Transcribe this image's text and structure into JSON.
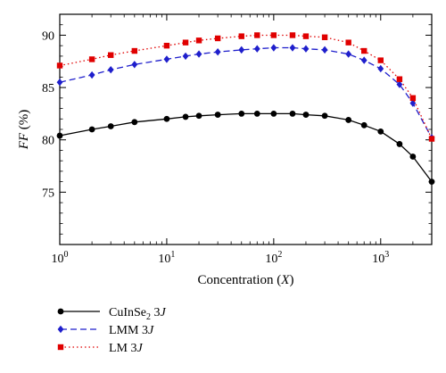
{
  "chart_data": {
    "type": "line",
    "xlabel_parts": [
      "Concentration (",
      "X",
      ")"
    ],
    "ylabel_parts": [
      "FF",
      " (%)"
    ],
    "xscale": "log",
    "xlim": [
      1,
      3000
    ],
    "ylim": [
      70,
      92
    ],
    "x_ticks": [
      {
        "value": 1,
        "base": "10",
        "exp": "0"
      },
      {
        "value": 10,
        "base": "10",
        "exp": "1"
      },
      {
        "value": 100,
        "base": "10",
        "exp": "2"
      },
      {
        "value": 1000,
        "base": "10",
        "exp": "3"
      }
    ],
    "y_ticks": [
      75,
      80,
      85,
      90
    ],
    "grid": false,
    "legend_position": "bottom-left, below plot",
    "series": [
      {
        "legend_parts": [
          "CuInSe",
          "2",
          " 3",
          "J"
        ],
        "color": "#000000",
        "line_style": "solid",
        "marker": "circle",
        "x": [
          1,
          2,
          3,
          5,
          10,
          15,
          20,
          30,
          50,
          70,
          100,
          150,
          200,
          300,
          500,
          700,
          1000,
          1500,
          2000,
          3000
        ],
        "y": [
          80.4,
          81.0,
          81.3,
          81.7,
          82.0,
          82.2,
          82.3,
          82.4,
          82.5,
          82.5,
          82.5,
          82.5,
          82.4,
          82.3,
          81.9,
          81.4,
          80.8,
          79.6,
          78.4,
          76.0
        ]
      },
      {
        "legend_parts": [
          "LMM",
          "",
          " 3",
          "J"
        ],
        "color": "#1f1fcc",
        "line_style": "dashed",
        "marker": "diamond",
        "x": [
          1,
          2,
          3,
          5,
          10,
          15,
          20,
          30,
          50,
          70,
          100,
          150,
          200,
          300,
          500,
          700,
          1000,
          1500,
          2000,
          3000
        ],
        "y": [
          85.5,
          86.2,
          86.7,
          87.2,
          87.7,
          88.0,
          88.2,
          88.4,
          88.6,
          88.7,
          88.8,
          88.8,
          88.7,
          88.6,
          88.2,
          87.6,
          86.8,
          85.3,
          83.5,
          80.2
        ]
      },
      {
        "legend_parts": [
          "LM",
          "",
          " 3",
          "J"
        ],
        "color": "#e00000",
        "line_style": "dotted",
        "marker": "square",
        "x": [
          1,
          2,
          3,
          5,
          10,
          15,
          20,
          30,
          50,
          70,
          100,
          150,
          200,
          300,
          500,
          700,
          1000,
          1500,
          2000,
          3000
        ],
        "y": [
          87.1,
          87.7,
          88.1,
          88.5,
          89.0,
          89.3,
          89.5,
          89.7,
          89.9,
          90.0,
          90.0,
          90.0,
          89.9,
          89.8,
          89.3,
          88.5,
          87.6,
          85.8,
          84.0,
          80.1
        ]
      }
    ]
  }
}
